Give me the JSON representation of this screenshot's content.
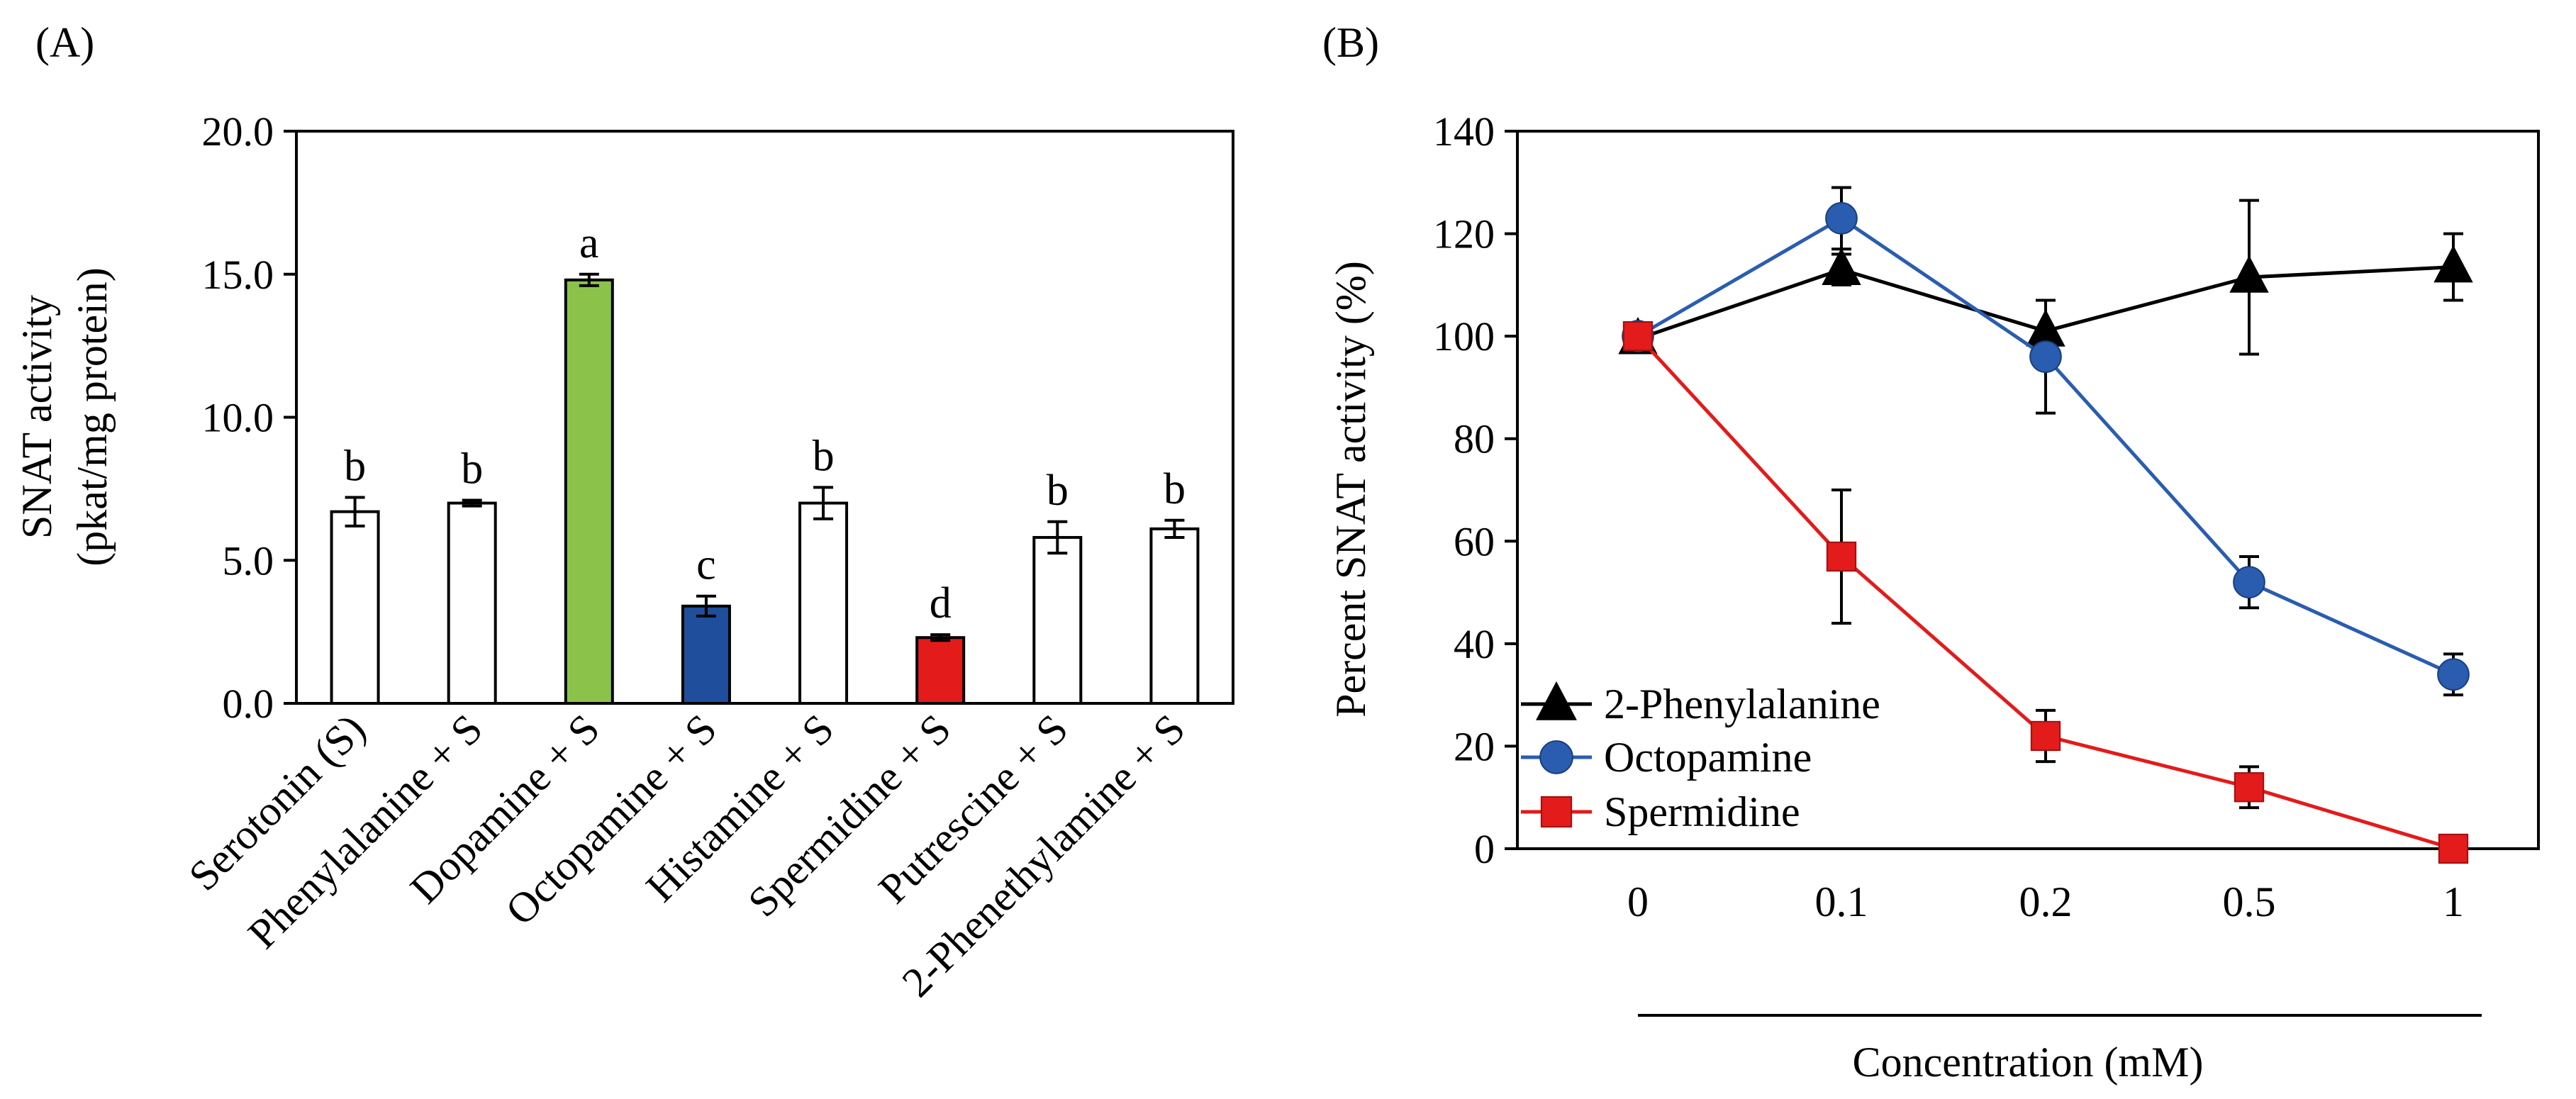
{
  "chart_data": [
    {
      "type": "bar",
      "panel_label": "(A)",
      "ylabel_line1": "SNAT activity",
      "ylabel_line2": "(pkat/mg protein)",
      "ylim": [
        0,
        20
      ],
      "yticks": [
        "0.0",
        "5.0",
        "10.0",
        "15.0",
        "20.0"
      ],
      "categories": [
        "Serotonin (S)",
        "Phenylalanine + S",
        "Dopamine + S",
        "Octopamine + S",
        "Histamine + S",
        "Spermidine + S",
        "Putrescine + S",
        "2-Phenethylamine + S"
      ],
      "values": [
        6.7,
        7.0,
        14.8,
        3.4,
        7.0,
        2.3,
        5.8,
        6.1
      ],
      "errors": [
        0.5,
        0.1,
        0.2,
        0.35,
        0.55,
        0.1,
        0.55,
        0.3
      ],
      "letters": [
        "b",
        "b",
        "a",
        "c",
        "b",
        "d",
        "b",
        "b"
      ],
      "colors": [
        "#ffffff",
        "#ffffff",
        "#8bc34a",
        "#1f4e9c",
        "#ffffff",
        "#e31b1b",
        "#ffffff",
        "#ffffff"
      ]
    },
    {
      "type": "line",
      "panel_label": "(B)",
      "ylabel": "Percent SNAT activity (%)",
      "xlabel": "Concentration (mM)",
      "ylim": [
        0,
        140
      ],
      "yticks": [
        "0",
        "20",
        "40",
        "60",
        "80",
        "100",
        "120",
        "140"
      ],
      "categories": [
        "0",
        "0.1",
        "0.2",
        "0.5",
        "1"
      ],
      "series": [
        {
          "name": "2-Phenylalanine",
          "color": "#000000",
          "marker": "triangle",
          "values": [
            99.5,
            113,
            101,
            111.5,
            113.5
          ],
          "errors": [
            2,
            3,
            6,
            15,
            6.5
          ]
        },
        {
          "name": "Octopamine",
          "color": "#2a5db0",
          "marker": "circle",
          "values": [
            100,
            123,
            96,
            52,
            34
          ],
          "errors": [
            2,
            6,
            11,
            5,
            4
          ]
        },
        {
          "name": "Spermidine",
          "color": "#e31b1b",
          "marker": "square",
          "values": [
            100,
            57,
            22,
            12,
            0
          ],
          "errors": [
            2,
            13,
            5,
            4,
            0.5
          ]
        }
      ]
    }
  ]
}
